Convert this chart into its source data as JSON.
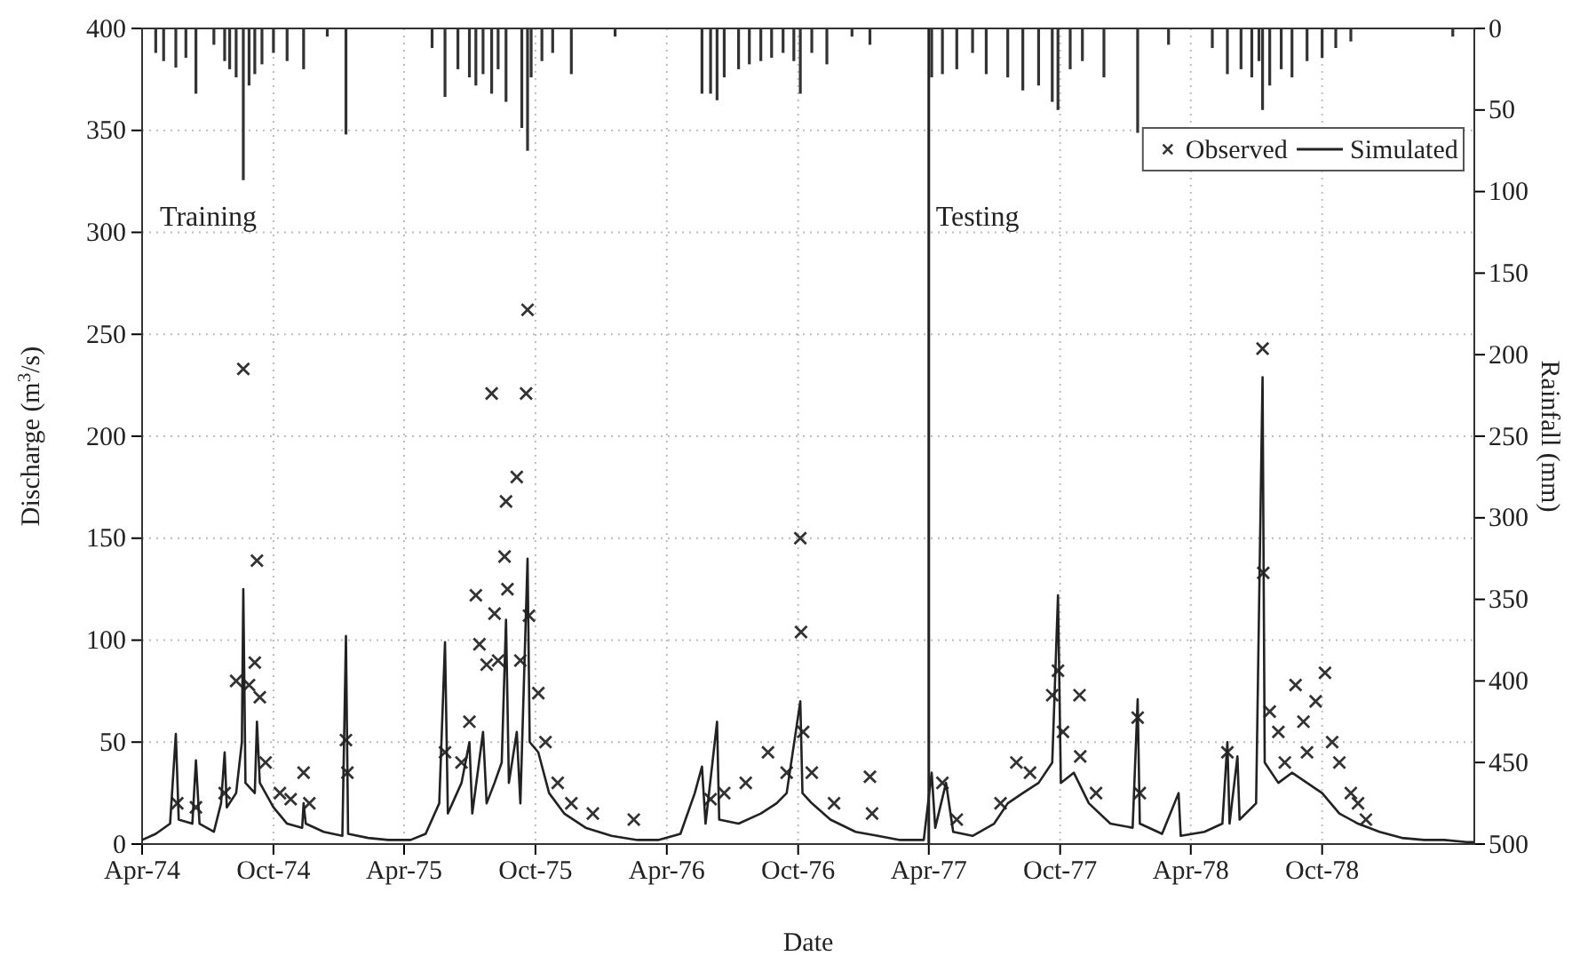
{
  "chart_data": {
    "type": "line",
    "xlabel": "Date",
    "ylabel": "Discharge (m$^{3}$/s)",
    "y2label": "Rainfall (mm)",
    "xlim": [
      "1974-04-01",
      "1979-05-01"
    ],
    "xticks": [
      {
        "value": "1974-04-01",
        "label": "Apr-74"
      },
      {
        "value": "1974-10-01",
        "label": "Oct-74"
      },
      {
        "value": "1975-04-01",
        "label": "Apr-75"
      },
      {
        "value": "1975-10-01",
        "label": "Oct-75"
      },
      {
        "value": "1976-04-01",
        "label": "Apr-76"
      },
      {
        "value": "1976-10-01",
        "label": "Oct-76"
      },
      {
        "value": "1977-04-01",
        "label": "Apr-77"
      },
      {
        "value": "1977-10-01",
        "label": "Oct-77"
      },
      {
        "value": "1978-04-01",
        "label": "Apr-78"
      },
      {
        "value": "1978-10-01",
        "label": "Oct-78"
      }
    ],
    "ylim": [
      0,
      400
    ],
    "yticks": [
      0,
      50,
      100,
      150,
      200,
      250,
      300,
      350,
      400
    ],
    "y2lim": [
      500,
      0
    ],
    "y2ticks": [
      0,
      50,
      100,
      150,
      200,
      250,
      300,
      350,
      400,
      450,
      500
    ],
    "grid": true,
    "legend": "top right",
    "annotations": [
      "Training",
      "Testing"
    ],
    "ref_lines": [
      {
        "axis": "x",
        "value": "1977-04-01",
        "color": "#222222"
      }
    ],
    "series": [
      {
        "name": "Observed",
        "type": "scatter",
        "marker": "cross",
        "color": "#333333",
        "x": [
          "1974-05-20",
          "1974-06-15",
          "1974-07-25",
          "1974-08-10",
          "1974-08-20",
          "1974-08-28",
          "1974-09-05",
          "1974-09-08",
          "1974-09-12",
          "1974-09-20",
          "1974-10-10",
          "1974-10-25",
          "1974-11-12",
          "1974-11-20",
          "1975-01-10",
          "1975-01-12",
          "1975-05-28",
          "1975-06-20",
          "1975-07-01",
          "1975-07-10",
          "1975-07-15",
          "1975-07-25",
          "1975-08-01",
          "1975-08-05",
          "1975-08-10",
          "1975-08-19",
          "1975-08-21",
          "1975-08-23",
          "1975-09-05",
          "1975-09-10",
          "1975-09-18",
          "1975-09-20",
          "1975-09-22",
          "1975-10-05",
          "1975-10-15",
          "1975-11-01",
          "1975-11-20",
          "1975-12-20",
          "1976-02-15",
          "1976-06-01",
          "1976-06-20",
          "1976-07-20",
          "1976-08-20",
          "1976-09-15",
          "1976-10-04",
          "1976-10-05",
          "1976-10-08",
          "1976-10-20",
          "1976-11-20",
          "1977-01-09",
          "1977-01-12",
          "1977-04-20",
          "1977-05-10",
          "1977-07-10",
          "1977-08-01",
          "1977-08-20",
          "1977-09-20",
          "1977-09-28",
          "1977-10-05",
          "1977-10-28",
          "1977-10-29",
          "1977-11-20",
          "1978-01-17",
          "1978-01-20",
          "1978-05-22",
          "1978-07-10",
          "1978-07-11",
          "1978-07-20",
          "1978-08-01",
          "1978-08-10",
          "1978-08-25",
          "1978-09-05",
          "1978-09-10",
          "1978-09-22",
          "1978-10-05",
          "1978-10-15",
          "1978-10-25",
          "1978-11-10",
          "1978-11-20",
          "1978-12-01"
        ],
        "values": [
          20,
          18,
          25,
          80,
          233,
          78,
          89,
          139,
          72,
          40,
          25,
          22,
          35,
          20,
          51,
          35,
          45,
          40,
          60,
          122,
          98,
          88,
          221,
          113,
          90,
          141,
          168,
          125,
          180,
          90,
          221,
          262,
          112,
          74,
          50,
          30,
          20,
          15,
          12,
          22,
          25,
          30,
          45,
          35,
          150,
          104,
          55,
          35,
          20,
          33,
          15,
          30,
          12,
          20,
          40,
          35,
          73,
          85,
          55,
          73,
          43,
          25,
          62,
          25,
          45,
          243,
          133,
          65,
          55,
          40,
          78,
          60,
          45,
          70,
          84,
          50,
          40,
          25,
          20,
          12
        ]
      },
      {
        "name": "Simulated",
        "color": "#222222",
        "x": [
          "1974-04-01",
          "1974-04-20",
          "1974-05-10",
          "1974-05-18",
          "1974-05-22",
          "1974-06-10",
          "1974-06-15",
          "1974-06-20",
          "1974-07-10",
          "1974-07-20",
          "1974-07-25",
          "1974-07-28",
          "1974-08-10",
          "1974-08-18",
          "1974-08-20",
          "1974-08-23",
          "1974-09-05",
          "1974-09-08",
          "1974-09-12",
          "1974-10-01",
          "1974-10-20",
          "1974-11-10",
          "1974-11-12",
          "1974-11-15",
          "1974-12-10",
          "1975-01-05",
          "1975-01-10",
          "1975-01-13",
          "1975-02-10",
          "1975-03-10",
          "1975-04-10",
          "1975-05-01",
          "1975-05-20",
          "1975-05-28",
          "1975-06-01",
          "1975-06-20",
          "1975-07-01",
          "1975-07-05",
          "1975-07-20",
          "1975-07-25",
          "1975-08-05",
          "1975-08-15",
          "1975-08-21",
          "1975-08-25",
          "1975-09-05",
          "1975-09-10",
          "1975-09-20",
          "1975-09-23",
          "1975-10-05",
          "1975-10-20",
          "1975-11-10",
          "1975-12-10",
          "1976-01-15",
          "1976-02-20",
          "1976-03-20",
          "1976-04-20",
          "1976-05-10",
          "1976-05-20",
          "1976-05-25",
          "1976-06-10",
          "1976-06-13",
          "1976-07-10",
          "1976-08-10",
          "1976-09-01",
          "1976-09-15",
          "1976-10-04",
          "1976-10-07",
          "1976-10-20",
          "1976-11-15",
          "1976-12-20",
          "1977-01-20",
          "1977-02-20",
          "1977-03-25",
          "1977-04-05",
          "1977-04-10",
          "1977-04-25",
          "1977-05-05",
          "1977-06-01",
          "1977-07-01",
          "1977-07-20",
          "1977-08-10",
          "1977-09-01",
          "1977-09-20",
          "1977-09-28",
          "1977-10-02",
          "1977-10-20",
          "1977-11-10",
          "1977-12-10",
          "1978-01-10",
          "1978-01-17",
          "1978-01-20",
          "1978-02-20",
          "1978-03-15",
          "1978-03-18",
          "1978-04-20",
          "1978-05-15",
          "1978-05-22",
          "1978-05-25",
          "1978-06-05",
          "1978-06-08",
          "1978-07-01",
          "1978-07-10",
          "1978-07-13",
          "1978-08-01",
          "1978-08-20",
          "1978-09-10",
          "1978-10-01",
          "1978-10-25",
          "1978-11-20",
          "1978-12-20",
          "1979-01-20",
          "1979-02-20",
          "1979-03-20",
          "1979-04-20",
          "1979-05-01"
        ],
        "values": [
          2,
          5,
          10,
          54,
          12,
          10,
          41,
          10,
          6,
          20,
          45,
          18,
          25,
          50,
          125,
          30,
          25,
          60,
          30,
          18,
          10,
          8,
          20,
          10,
          6,
          4,
          102,
          5,
          3,
          2,
          2,
          5,
          20,
          99,
          15,
          30,
          50,
          15,
          55,
          20,
          30,
          40,
          110,
          30,
          55,
          20,
          140,
          50,
          45,
          25,
          15,
          8,
          4,
          2,
          2,
          5,
          25,
          38,
          10,
          60,
          12,
          10,
          15,
          20,
          25,
          70,
          25,
          20,
          12,
          6,
          4,
          2,
          2,
          35,
          8,
          30,
          6,
          4,
          10,
          20,
          25,
          30,
          40,
          122,
          30,
          35,
          20,
          10,
          8,
          71,
          10,
          5,
          25,
          4,
          6,
          10,
          50,
          10,
          43,
          12,
          20,
          229,
          40,
          30,
          35,
          30,
          25,
          15,
          10,
          6,
          3,
          2,
          2,
          1,
          1
        ]
      },
      {
        "type": "bar",
        "axis": "y2",
        "color": "#333333",
        "x": [
          "1974-04-20",
          "1974-05-01",
          "1974-05-18",
          "1974-06-01",
          "1974-06-15",
          "1974-07-10",
          "1974-07-25",
          "1974-08-01",
          "1974-08-10",
          "1974-08-20",
          "1974-08-28",
          "1974-09-05",
          "1974-09-15",
          "1974-10-01",
          "1974-10-20",
          "1974-11-12",
          "1974-12-15",
          "1975-01-10",
          "1975-05-10",
          "1975-05-28",
          "1975-06-15",
          "1975-07-01",
          "1975-07-10",
          "1975-07-20",
          "1975-08-01",
          "1975-08-10",
          "1975-08-21",
          "1975-09-12",
          "1975-09-20",
          "1975-09-25",
          "1975-10-10",
          "1975-10-25",
          "1975-11-20",
          "1976-01-20",
          "1976-05-20",
          "1976-06-01",
          "1976-06-10",
          "1976-06-20",
          "1976-07-10",
          "1976-07-25",
          "1976-08-10",
          "1976-08-25",
          "1976-09-10",
          "1976-09-25",
          "1976-10-04",
          "1976-10-20",
          "1976-11-10",
          "1976-12-15",
          "1977-01-09",
          "1977-04-05",
          "1977-04-20",
          "1977-05-10",
          "1977-06-01",
          "1977-06-20",
          "1977-07-20",
          "1977-08-10",
          "1977-09-01",
          "1977-09-20",
          "1977-09-28",
          "1977-10-15",
          "1977-11-01",
          "1977-12-01",
          "1978-01-17",
          "1978-03-01",
          "1978-05-01",
          "1978-05-22",
          "1978-06-10",
          "1978-06-25",
          "1978-07-05",
          "1978-07-10",
          "1978-07-20",
          "1978-08-05",
          "1978-08-20",
          "1978-09-10",
          "1978-10-01",
          "1978-10-20",
          "1978-11-10",
          "1979-04-01"
        ],
        "values": [
          15,
          20,
          24,
          18,
          40,
          10,
          20,
          25,
          30,
          93,
          35,
          28,
          22,
          15,
          20,
          25,
          5,
          65,
          12,
          42,
          25,
          30,
          35,
          28,
          40,
          25,
          45,
          61,
          75,
          30,
          20,
          15,
          28,
          5,
          40,
          40,
          44,
          30,
          25,
          22,
          20,
          18,
          15,
          20,
          40,
          15,
          22,
          5,
          10,
          30,
          28,
          25,
          15,
          28,
          30,
          38,
          35,
          45,
          50,
          25,
          20,
          30,
          64,
          10,
          12,
          28,
          25,
          30,
          20,
          50,
          35,
          25,
          30,
          20,
          18,
          12,
          8,
          5
        ]
      }
    ]
  }
}
